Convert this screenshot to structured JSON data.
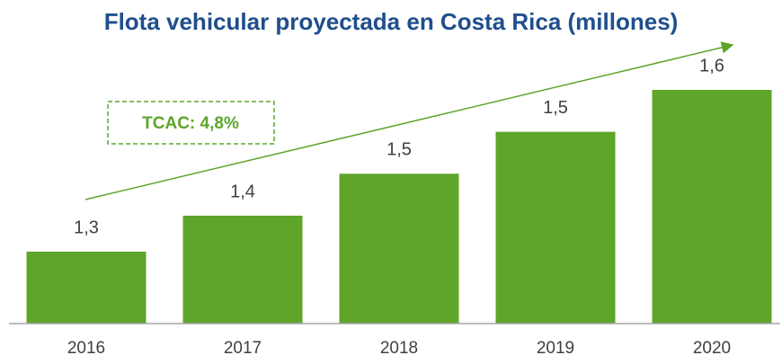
{
  "chart_data": {
    "type": "bar",
    "title": "Flota vehicular proyectada en Costa Rica (millones)",
    "categories": [
      "2016",
      "2017",
      "2018",
      "2019",
      "2020"
    ],
    "values": [
      1.32,
      1.38,
      1.45,
      1.52,
      1.59
    ],
    "value_labels": [
      "1,3",
      "1,4",
      "1,5",
      "1,5",
      "1,6"
    ],
    "color": "#5ea52a",
    "ylim": [
      1.2,
      1.65
    ],
    "annotation": "TCAC: 4,8%"
  }
}
